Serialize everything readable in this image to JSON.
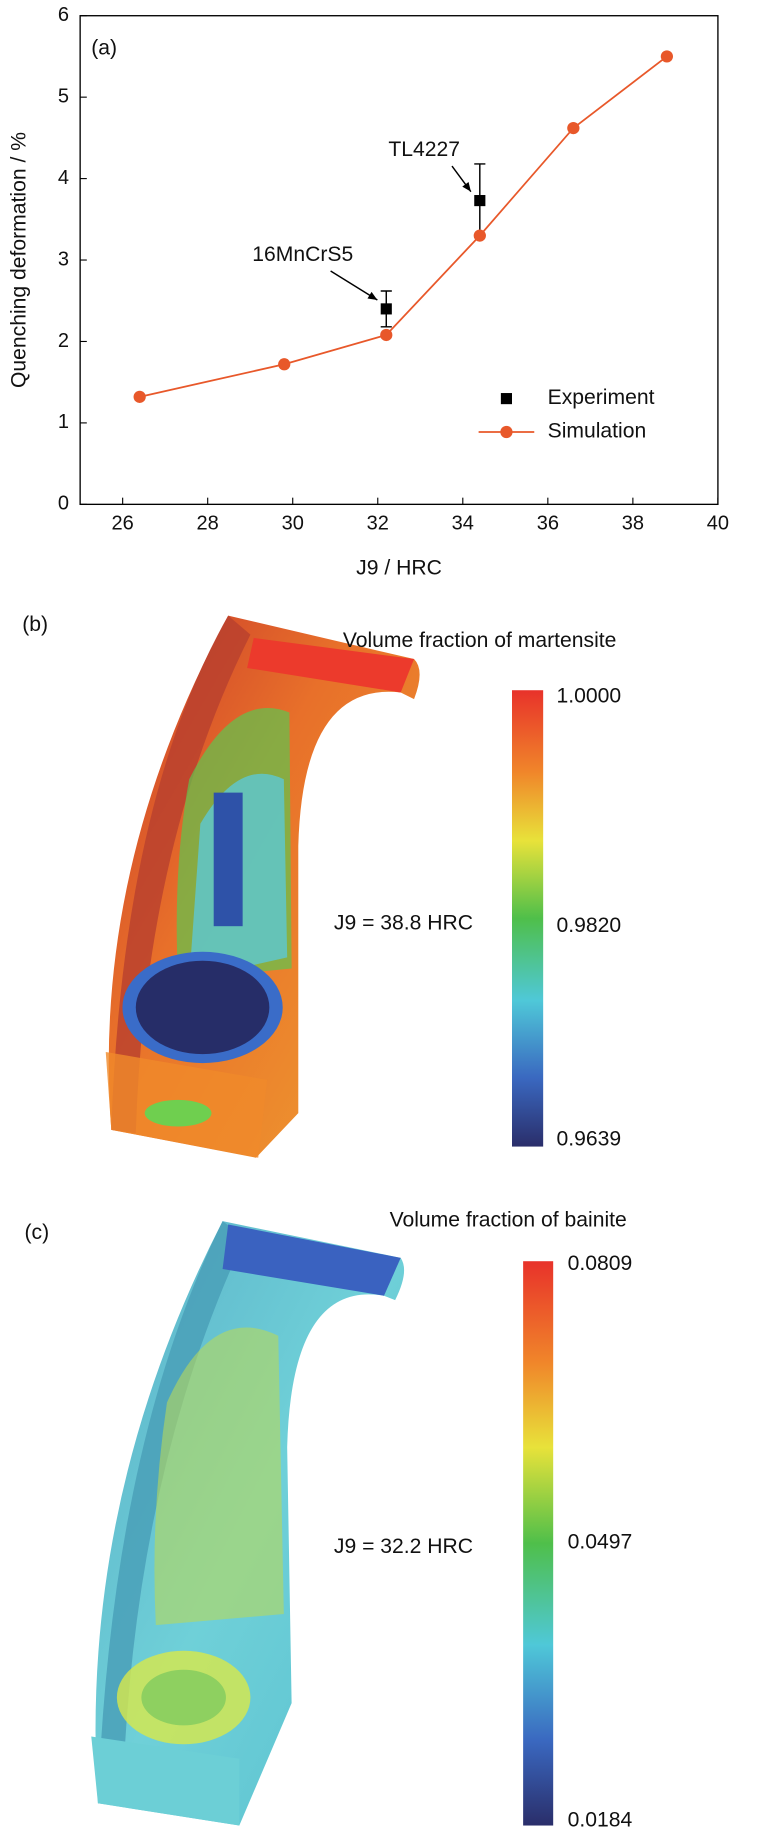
{
  "chart_data": {
    "type": "line",
    "panel_label": "(a)",
    "x_label": "J9 / HRC",
    "y_label": "Quenching deformation / %",
    "xlim": [
      25,
      40
    ],
    "xticks": [
      26,
      28,
      30,
      32,
      34,
      36,
      38,
      40
    ],
    "ylim": [
      0,
      6
    ],
    "yticks": [
      0,
      1,
      2,
      3,
      4,
      5,
      6
    ],
    "legend": "lower right",
    "series": [
      {
        "name": "Experiment",
        "color": "#000000",
        "marker": "square",
        "x": [
          32.2,
          34.4
        ],
        "values": [
          2.4,
          3.73
        ],
        "errors": [
          0.22,
          0.45
        ]
      },
      {
        "name": "Simulation",
        "color": "#e8582a",
        "marker": "circle",
        "x": [
          26.4,
          29.8,
          32.2,
          34.4,
          36.6,
          38.8
        ],
        "values": [
          1.32,
          1.72,
          2.08,
          3.3,
          4.62,
          5.5
        ]
      }
    ],
    "annotations": [
      "16MnCrS5",
      "TL4227"
    ]
  },
  "panels": [
    {
      "label": "(b)",
      "title": "Volume fraction of martensite",
      "annotation": "J9 = 38.8 HRC",
      "colorbar_labels": [
        "1.0000",
        "0.9820",
        "0.9639"
      ]
    },
    {
      "label": "(c)",
      "title": "Volume fraction of bainite",
      "annotation": "J9 = 32.2 HRC",
      "colorbar_labels": [
        "0.0809",
        "0.0497",
        "0.0184"
      ]
    }
  ]
}
